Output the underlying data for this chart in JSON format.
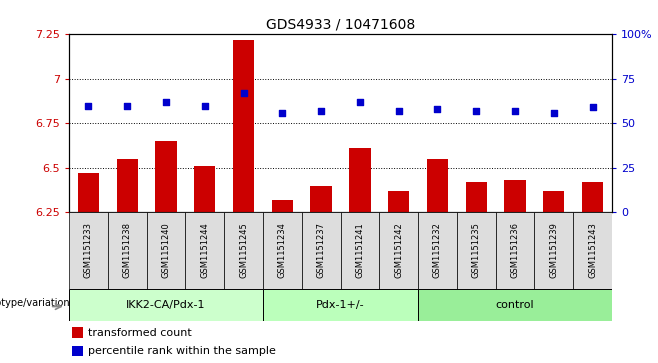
{
  "title": "GDS4933 / 10471608",
  "samples": [
    "GSM1151233",
    "GSM1151238",
    "GSM1151240",
    "GSM1151244",
    "GSM1151245",
    "GSM1151234",
    "GSM1151237",
    "GSM1151241",
    "GSM1151242",
    "GSM1151232",
    "GSM1151235",
    "GSM1151236",
    "GSM1151239",
    "GSM1151243"
  ],
  "bar_values": [
    6.47,
    6.55,
    6.65,
    6.51,
    7.22,
    6.32,
    6.4,
    6.61,
    6.37,
    6.55,
    6.42,
    6.43,
    6.37,
    6.42
  ],
  "dot_percentiles": [
    60,
    60,
    62,
    60,
    67,
    56,
    57,
    62,
    57,
    58,
    57,
    57,
    56,
    59
  ],
  "bar_color": "#cc0000",
  "dot_color": "#0000cc",
  "ylim_left": [
    6.25,
    7.25
  ],
  "ylim_right": [
    0,
    100
  ],
  "yticks_left": [
    6.25,
    6.5,
    6.75,
    7.0,
    7.25
  ],
  "ytick_labels_left": [
    "6.25",
    "6.5",
    "6.75",
    "7",
    "7.25"
  ],
  "yticks_right": [
    0,
    25,
    50,
    75,
    100
  ],
  "ytick_labels_right": [
    "0",
    "25",
    "50",
    "75",
    "100%"
  ],
  "groups": [
    {
      "label": "IKK2-CA/Pdx-1",
      "start": 0,
      "end": 5,
      "color": "#ccffcc"
    },
    {
      "label": "Pdx-1+/-",
      "start": 5,
      "end": 9,
      "color": "#bbffbb"
    },
    {
      "label": "control",
      "start": 9,
      "end": 14,
      "color": "#99ee99"
    }
  ],
  "xlabel_left": "genotype/variation",
  "legend_bar": "transformed count",
  "legend_dot": "percentile rank within the sample",
  "dotted_gridlines": [
    6.5,
    6.75,
    7.0
  ],
  "background_color": "#ffffff",
  "bar_bottom": 6.25,
  "sample_box_color": "#dddddd",
  "title_fontsize": 10,
  "axis_fontsize": 8,
  "tick_label_fontsize": 7
}
